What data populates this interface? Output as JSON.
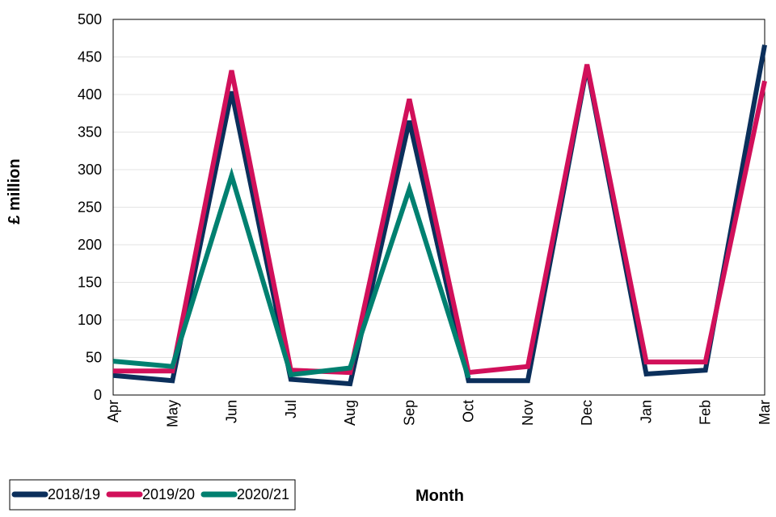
{
  "chart_data": {
    "type": "line",
    "title": "",
    "xlabel": "Month",
    "ylabel": "£ million",
    "categories": [
      "Apr",
      "May",
      "Jun",
      "Jul",
      "Aug",
      "Sep",
      "Oct",
      "Nov",
      "Dec",
      "Jan",
      "Feb",
      "Mar"
    ],
    "ylim": [
      0,
      500
    ],
    "yticks": [
      0,
      50,
      100,
      150,
      200,
      250,
      300,
      350,
      400,
      450,
      500
    ],
    "grid": true,
    "legend_position": "bottom-left",
    "series": [
      {
        "name": "2018/19",
        "color": "#0b2f5b",
        "values": [
          26,
          19,
          404,
          21,
          15,
          365,
          19,
          19,
          437,
          28,
          33,
          466
        ]
      },
      {
        "name": "2019/20",
        "color": "#d1105a",
        "values": [
          32,
          32,
          432,
          33,
          30,
          394,
          30,
          38,
          440,
          44,
          44,
          418
        ]
      },
      {
        "name": "2020/21",
        "color": "#008070",
        "values": [
          45,
          38,
          292,
          27,
          36,
          274,
          23,
          null,
          null,
          null,
          null,
          null
        ]
      }
    ]
  }
}
